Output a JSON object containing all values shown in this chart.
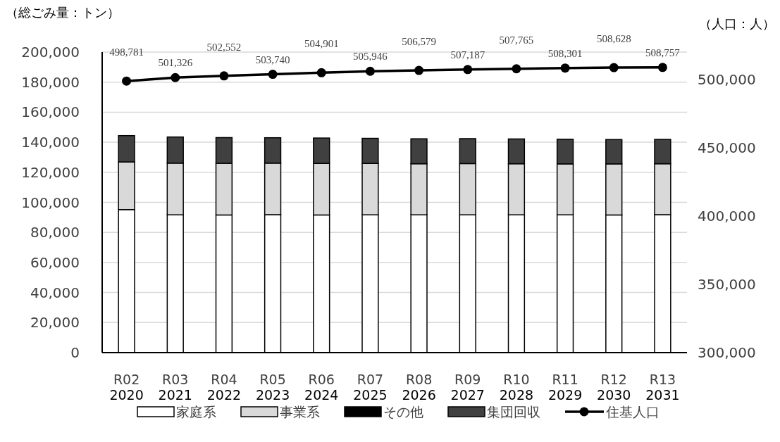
{
  "chart_data": {
    "type": "bar",
    "stacked": true,
    "ylabel": "（総ごみ量：トン）",
    "y2label": "（人口：人）",
    "categories": [
      "R02\n2020",
      "R03\n2021",
      "R04\n2022",
      "R05\n2023",
      "R06\n2024",
      "R07\n2025",
      "R08\n2026",
      "R09\n2027",
      "R10\n2028",
      "R11\n2029",
      "R12\n2030",
      "R13\n2031"
    ],
    "series": [
      {
        "name": "家庭系",
        "color": "#ffffff",
        "values": [
          95200,
          91700,
          91600,
          91800,
          91600,
          91700,
          91700,
          91700,
          91700,
          91700,
          91600,
          91800
        ]
      },
      {
        "name": "事業系",
        "color": "#d9d9d9",
        "values": [
          31700,
          34400,
          34400,
          34300,
          34300,
          34200,
          34000,
          34100,
          34000,
          33900,
          34000,
          33900
        ]
      },
      {
        "name": "その他",
        "color": "#000000",
        "values": [
          0,
          0,
          0,
          0,
          0,
          0,
          0,
          0,
          0,
          0,
          0,
          0
        ]
      },
      {
        "name": "集団回収",
        "color": "#404040",
        "values": [
          17500,
          17400,
          17100,
          16900,
          16900,
          16700,
          16600,
          16600,
          16500,
          16400,
          16200,
          16200
        ]
      },
      {
        "name": "住基人口",
        "type": "line",
        "axis": "y2",
        "color": "#000000",
        "marker": "circle",
        "value_labels": [
          "498,781",
          "501,326",
          "502,552",
          "503,740",
          "504,901",
          "505,946",
          "506,579",
          "507,187",
          "507,765",
          "508,301",
          "508,628",
          "508,757"
        ],
        "values": [
          498781,
          501326,
          502552,
          503740,
          504901,
          505946,
          506579,
          507187,
          507765,
          508301,
          508628,
          508757
        ]
      }
    ],
    "ylim": [
      0,
      200000
    ],
    "yticks": [
      {
        "value": 0,
        "label": "0"
      },
      {
        "value": 20000,
        "label": "20,000"
      },
      {
        "value": 40000,
        "label": "40,000"
      },
      {
        "value": 60000,
        "label": "60,000"
      },
      {
        "value": 80000,
        "label": "80,000"
      },
      {
        "value": 100000,
        "label": "100,000"
      },
      {
        "value": 120000,
        "label": "120,000"
      },
      {
        "value": 140000,
        "label": "140,000"
      },
      {
        "value": 160000,
        "label": "160,000"
      },
      {
        "value": 180000,
        "label": "180,000"
      },
      {
        "value": 200000,
        "label": "200,000"
      }
    ],
    "y2lim": [
      300000,
      520000
    ],
    "y2ticks": [
      {
        "value": 300000,
        "label": "300,000"
      },
      {
        "value": 350000,
        "label": "350,000"
      },
      {
        "value": 400000,
        "label": "400,000"
      },
      {
        "value": 450000,
        "label": "450,000"
      },
      {
        "value": 500000,
        "label": "500,000"
      }
    ],
    "grid": "y",
    "legend": "bottom"
  }
}
